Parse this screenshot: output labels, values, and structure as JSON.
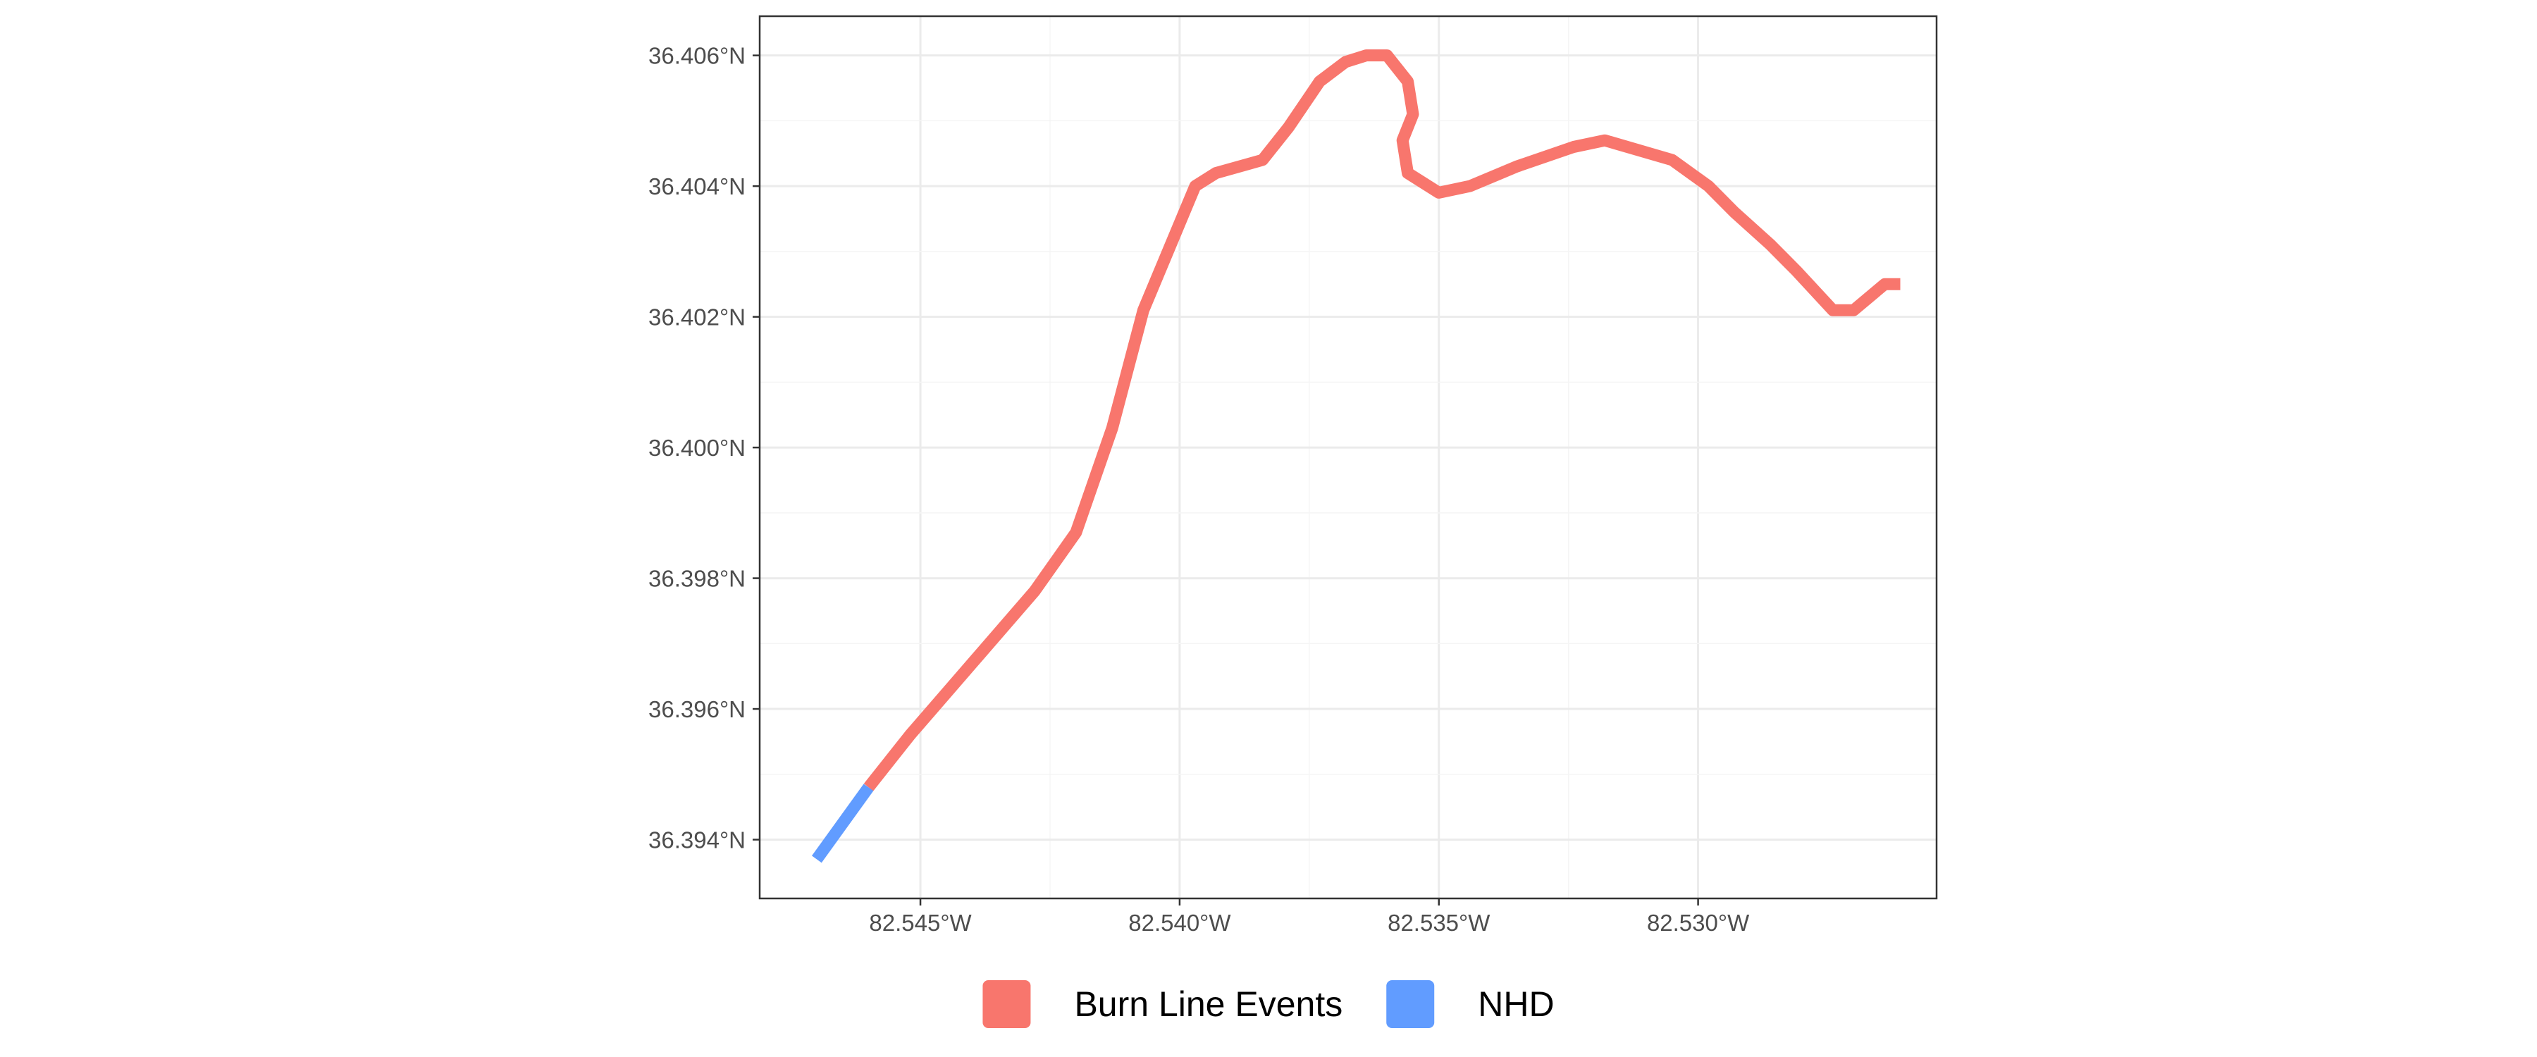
{
  "chart_data": {
    "type": "line",
    "title": "",
    "xlabel": "",
    "ylabel": "",
    "xlim": [
      -82.5481,
      -82.5254
    ],
    "ylim": [
      36.3931,
      36.4066
    ],
    "grid": true,
    "legend_position": "bottom",
    "x_ticks": [
      {
        "value": -82.545,
        "label": "82.545°W"
      },
      {
        "value": -82.54,
        "label": "82.540°W"
      },
      {
        "value": -82.535,
        "label": "82.535°W"
      },
      {
        "value": -82.53,
        "label": "82.530°W"
      }
    ],
    "y_ticks": [
      {
        "value": 36.394,
        "label": "36.394°N"
      },
      {
        "value": 36.396,
        "label": "36.396°N"
      },
      {
        "value": 36.398,
        "label": "36.398°N"
      },
      {
        "value": 36.4,
        "label": "36.400°N"
      },
      {
        "value": 36.402,
        "label": "36.402°N"
      },
      {
        "value": 36.404,
        "label": "36.404°N"
      },
      {
        "value": 36.406,
        "label": "36.406°N"
      }
    ],
    "series": [
      {
        "name": "Burn Line Events",
        "color": "#f8766d",
        "points": [
          [
            -82.546,
            36.3948
          ],
          [
            -82.5452,
            36.3956
          ],
          [
            -82.544,
            36.3967
          ],
          [
            -82.5428,
            36.3978
          ],
          [
            -82.542,
            36.3987
          ],
          [
            -82.5413,
            36.4003
          ],
          [
            -82.5407,
            36.4021
          ],
          [
            -82.5397,
            36.404
          ],
          [
            -82.5393,
            36.4042
          ],
          [
            -82.5384,
            36.4044
          ],
          [
            -82.5379,
            36.4049
          ],
          [
            -82.5373,
            36.4056
          ],
          [
            -82.5368,
            36.4059
          ],
          [
            -82.5364,
            36.406
          ],
          [
            -82.536,
            36.406
          ],
          [
            -82.5356,
            36.4056
          ],
          [
            -82.5355,
            36.4051
          ],
          [
            -82.5357,
            36.4047
          ],
          [
            -82.5356,
            36.4042
          ],
          [
            -82.535,
            36.4039
          ],
          [
            -82.5344,
            36.404
          ],
          [
            -82.5335,
            36.4043
          ],
          [
            -82.5324,
            36.4046
          ],
          [
            -82.5318,
            36.4047
          ],
          [
            -82.5305,
            36.4044
          ],
          [
            -82.5298,
            36.404
          ],
          [
            -82.5293,
            36.4036
          ],
          [
            -82.5286,
            36.4031
          ],
          [
            -82.5281,
            36.4027
          ],
          [
            -82.5274,
            36.4021
          ],
          [
            -82.527,
            36.4021
          ],
          [
            -82.5264,
            36.4025
          ],
          [
            -82.5261,
            36.4025
          ]
        ]
      },
      {
        "name": "NHD",
        "color": "#619cff",
        "points": [
          [
            -82.547,
            36.3937
          ],
          [
            -82.546,
            36.3948
          ]
        ]
      }
    ]
  }
}
